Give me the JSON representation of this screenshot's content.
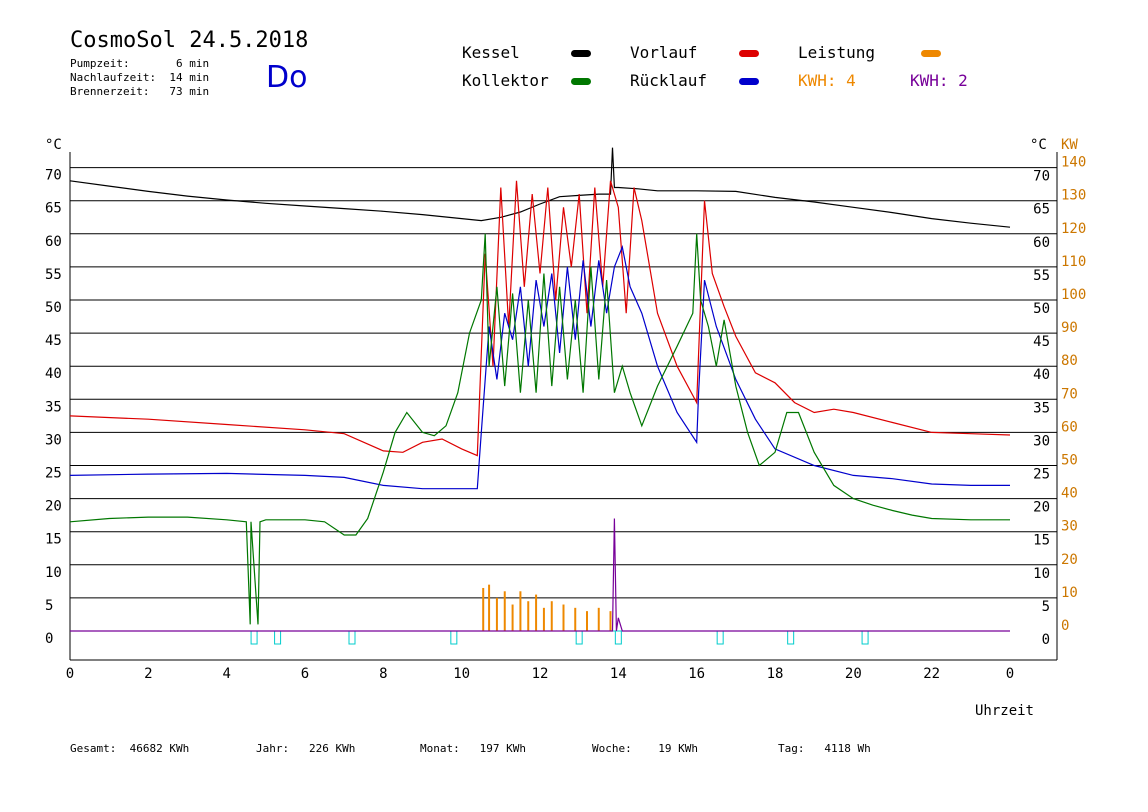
{
  "header": {
    "title": "CosmoSol 24.5.2018",
    "pumpzeit": "Pumpzeit:       6 min",
    "nachlaufzeit": "Nachlaufzeit:  14 min",
    "brennerzeit": "Brennerzeit:   73 min",
    "day": "Do"
  },
  "legend": {
    "kessel": "Kessel",
    "vorlauf": "Vorlauf",
    "leistung": "Leistung",
    "kollektor": "Kollektor",
    "ruecklauf": "Rücklauf",
    "kwh1": "KWH: 4",
    "kwh2": "KWH: 2"
  },
  "colors": {
    "kessel": "#000000",
    "vorlauf": "#dd0000",
    "leistung": "#ee8800",
    "kollektor": "#007700",
    "ruecklauf": "#0000cc",
    "kwh2": "#770099",
    "pump": "#00cccc",
    "kw_axis": "#cc7700"
  },
  "footer": {
    "gesamt": "Gesamt:  46682 KWh",
    "jahr": "Jahr:   226 KWh",
    "monat": "Monat:   197 KWh",
    "woche": "Woche:    19 KWh",
    "tag": "Tag:   4118 Wh"
  },
  "chart_data": {
    "type": "line",
    "title": "CosmoSol 24.5.2018",
    "xlabel": "Uhrzeit",
    "ylabel_left": "°C",
    "ylabel_right_temp": "°C",
    "ylabel_right_power": "KW",
    "xlim": [
      0,
      24
    ],
    "ylim": [
      0,
      75
    ],
    "x_tick_labels": [
      "0",
      "2",
      "4",
      "6",
      "8",
      "10",
      "12",
      "14",
      "16",
      "18",
      "20",
      "22",
      "0"
    ],
    "y_ticks": [
      0,
      5,
      10,
      15,
      20,
      25,
      30,
      35,
      40,
      45,
      50,
      55,
      60,
      65,
      70
    ],
    "y_tick_labels_right": [
      "0",
      "5",
      "10",
      "15",
      "20",
      "25",
      "30",
      "35",
      "40",
      "45",
      "50",
      "55",
      "60",
      "65",
      "70"
    ],
    "kw_tick_labels": [
      "0",
      "10",
      "20",
      "30",
      "40",
      "50",
      "60",
      "70",
      "80",
      "90",
      "100",
      "110",
      "120",
      "130",
      "140"
    ],
    "grid": "horizontal",
    "series": [
      {
        "name": "Kessel",
        "color": "#000000",
        "x": [
          0,
          1,
          2,
          3,
          4,
          5,
          6,
          7,
          8,
          9,
          10,
          10.5,
          11,
          11.5,
          12,
          12.5,
          13,
          13.5,
          13.8,
          13.85,
          13.9,
          14,
          14.5,
          15,
          16,
          17,
          18,
          19,
          20,
          21,
          22,
          23,
          24
        ],
        "y": [
          68,
          67.2,
          66.4,
          65.7,
          65.1,
          64.6,
          64.2,
          63.8,
          63.4,
          62.9,
          62.3,
          62,
          62.5,
          63.3,
          64.5,
          65.6,
          65.8,
          66,
          66,
          73,
          67,
          67,
          66.8,
          66.5,
          66.5,
          66.4,
          65.5,
          64.8,
          64,
          63.2,
          62.3,
          61.6,
          61
        ]
      },
      {
        "name": "Vorlauf",
        "color": "#dd0000",
        "x": [
          0,
          2,
          4,
          6,
          7,
          7.5,
          8,
          8.5,
          9,
          9.5,
          10,
          10.4,
          10.6,
          10.8,
          11.0,
          11.2,
          11.4,
          11.6,
          11.8,
          12.0,
          12.2,
          12.4,
          12.6,
          12.8,
          13.0,
          13.2,
          13.4,
          13.6,
          13.8,
          14.0,
          14.2,
          14.4,
          14.6,
          15.0,
          15.5,
          16.0,
          16.2,
          16.4,
          16.7,
          17.0,
          17.5,
          18.0,
          18.5,
          19.0,
          19.5,
          20,
          21,
          22,
          23,
          24
        ],
        "y": [
          32.5,
          32,
          31.2,
          30.4,
          29.8,
          28.5,
          27.2,
          27,
          28.5,
          29,
          27.5,
          26.5,
          57,
          40,
          67,
          46,
          68,
          52,
          66,
          54,
          67,
          50,
          64,
          55,
          66,
          48,
          67,
          52,
          68,
          64,
          48,
          67,
          62,
          48,
          40,
          34.5,
          65,
          54,
          49,
          44.5,
          39,
          37.5,
          34.5,
          33,
          33.5,
          33,
          31.5,
          30,
          29.8,
          29.6
        ]
      },
      {
        "name": "Rücklauf",
        "color": "#0000cc",
        "x": [
          0,
          2,
          4,
          6,
          7,
          8,
          9,
          10,
          10.4,
          10.5,
          10.7,
          10.9,
          11.1,
          11.3,
          11.5,
          11.7,
          11.9,
          12.1,
          12.3,
          12.5,
          12.7,
          12.9,
          13.1,
          13.3,
          13.5,
          13.7,
          13.9,
          14.1,
          14.3,
          14.6,
          15.0,
          15.5,
          16.0,
          16.05,
          16.2,
          16.5,
          17.0,
          17.5,
          18.0,
          19,
          20,
          21,
          22,
          23,
          24
        ],
        "y": [
          23.5,
          23.7,
          23.8,
          23.5,
          23.2,
          22.0,
          21.5,
          21.5,
          21.5,
          30,
          46,
          38,
          48,
          44,
          52,
          40,
          53,
          46,
          54,
          42,
          55,
          44,
          56,
          46,
          56,
          48,
          55,
          58,
          52,
          48,
          40,
          33,
          28.5,
          36,
          53,
          46,
          38,
          32,
          27.5,
          25,
          23.5,
          23,
          22.2,
          22.0,
          22.0
        ]
      },
      {
        "name": "Kollektor",
        "color": "#007700",
        "x": [
          0,
          1,
          2,
          3,
          4,
          4.5,
          4.6,
          4.62,
          4.8,
          4.85,
          5,
          6,
          6.5,
          7,
          7.3,
          7.6,
          8,
          8.3,
          8.6,
          9,
          9.3,
          9.6,
          9.9,
          10.2,
          10.5,
          10.6,
          10.7,
          10.9,
          11.1,
          11.3,
          11.5,
          11.7,
          11.9,
          12.1,
          12.3,
          12.5,
          12.7,
          12.9,
          13.1,
          13.3,
          13.5,
          13.7,
          13.9,
          14.1,
          14.3,
          14.6,
          15.0,
          15.5,
          15.9,
          16.0,
          16.1,
          16.3,
          16.5,
          16.7,
          17.0,
          17.3,
          17.6,
          18.0,
          18.3,
          18.6,
          19.0,
          19.5,
          20.0,
          20.5,
          21.0,
          21.5,
          22,
          23,
          24
        ],
        "y": [
          16.5,
          17.0,
          17.2,
          17.2,
          16.8,
          16.5,
          1,
          16.5,
          1,
          16.5,
          16.8,
          16.8,
          16.5,
          14.5,
          14.5,
          17,
          24,
          30,
          33,
          30,
          29.5,
          31,
          36,
          45,
          50,
          60,
          40,
          52,
          37,
          51,
          36,
          50,
          36,
          54,
          37,
          52,
          38,
          50,
          36,
          55,
          38,
          53,
          36,
          40,
          36,
          31,
          37,
          43,
          48,
          60,
          50,
          46,
          40,
          47,
          37,
          30,
          25,
          27,
          33,
          33,
          27,
          22,
          20,
          19,
          18.2,
          17.5,
          17,
          16.8,
          16.8
        ]
      },
      {
        "name": "KWH: 2",
        "color": "#770099",
        "x": [
          0,
          13.7,
          13.85,
          13.9,
          13.95,
          14.0,
          14.1,
          24
        ],
        "y": [
          0,
          0,
          0,
          17,
          0,
          2,
          0,
          0
        ]
      }
    ],
    "power_bars": {
      "color": "#ee8800",
      "x": [
        10.55,
        10.7,
        10.9,
        11.1,
        11.3,
        11.5,
        11.7,
        11.9,
        12.1,
        12.3,
        12.6,
        12.9,
        13.2,
        13.5,
        13.8
      ],
      "kw": [
        13,
        14,
        10,
        12,
        8,
        12,
        9,
        11,
        7,
        9,
        8,
        7,
        6,
        7,
        6
      ]
    },
    "pump_pulses": {
      "color": "#00cccc",
      "x": [
        4.7,
        5.3,
        7.2,
        9.8,
        13.0,
        14.0,
        16.6,
        18.4,
        20.3
      ]
    },
    "legend_position": "top"
  }
}
